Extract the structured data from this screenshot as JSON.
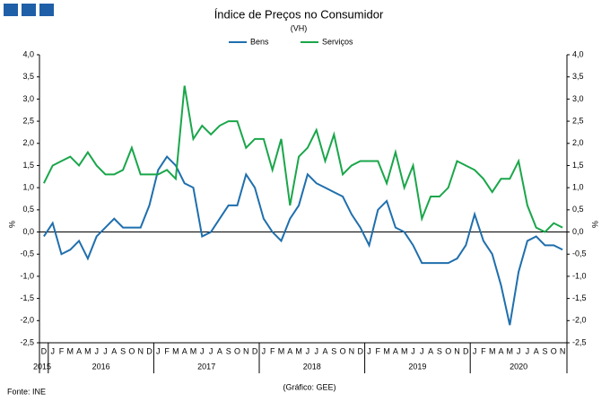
{
  "chart_data": {
    "type": "line",
    "title": "Índice de Preços no Consumidor",
    "subtitle": "(VH)",
    "ylabel": "%",
    "source": "Fonte: INE",
    "credit": "(Gráfico: GEE)",
    "categories": [
      "D",
      "J",
      "F",
      "M",
      "A",
      "M",
      "J",
      "J",
      "A",
      "S",
      "O",
      "N",
      "D",
      "J",
      "F",
      "M",
      "A",
      "M",
      "J",
      "J",
      "A",
      "S",
      "O",
      "N",
      "D",
      "J",
      "F",
      "M",
      "A",
      "M",
      "J",
      "J",
      "A",
      "S",
      "O",
      "N",
      "D",
      "J",
      "F",
      "M",
      "A",
      "M",
      "J",
      "J",
      "A",
      "S",
      "O",
      "N",
      "D",
      "J",
      "F",
      "M",
      "A",
      "M",
      "J",
      "J",
      "A",
      "S",
      "O",
      "N"
    ],
    "years": [
      "2015",
      "2016",
      "2017",
      "2018",
      "2019",
      "2020"
    ],
    "series": [
      {
        "name": "Bens",
        "color": "#1f6fad",
        "values": [
          -0.1,
          0.2,
          -0.5,
          -0.4,
          -0.2,
          -0.6,
          -0.1,
          0.1,
          0.3,
          0.1,
          0.1,
          0.1,
          0.6,
          1.4,
          1.7,
          1.5,
          1.1,
          1.0,
          -0.1,
          0.0,
          0.3,
          0.6,
          0.6,
          1.3,
          1.0,
          0.3,
          0.0,
          -0.2,
          0.3,
          0.6,
          1.3,
          1.1,
          1.0,
          0.9,
          0.8,
          0.4,
          0.1,
          -0.3,
          0.5,
          0.7,
          0.1,
          0.0,
          -0.3,
          -0.7,
          -0.7,
          -0.7,
          -0.7,
          -0.6,
          -0.3,
          0.4,
          -0.2,
          -0.5,
          -1.2,
          -2.1,
          -0.9,
          -0.2,
          -0.1,
          -0.3,
          -0.3,
          -0.4
        ]
      },
      {
        "name": "Serviços",
        "color": "#1aa64a",
        "values": [
          1.1,
          1.5,
          1.6,
          1.7,
          1.5,
          1.8,
          1.5,
          1.3,
          1.3,
          1.4,
          1.9,
          1.3,
          1.3,
          1.3,
          1.4,
          1.2,
          3.3,
          2.1,
          2.4,
          2.2,
          2.4,
          2.5,
          2.5,
          1.9,
          2.1,
          2.1,
          1.4,
          2.1,
          0.6,
          1.7,
          1.9,
          2.3,
          1.6,
          2.2,
          1.3,
          1.5,
          1.6,
          1.6,
          1.6,
          1.1,
          1.8,
          1.0,
          1.5,
          0.3,
          0.8,
          0.8,
          1.0,
          1.6,
          1.5,
          1.4,
          1.2,
          0.9,
          1.2,
          1.2,
          1.6,
          0.6,
          0.1,
          0.0,
          0.2,
          0.1
        ]
      }
    ],
    "ylim": [
      -2.5,
      4.0
    ],
    "yticks": [
      {
        "value": -2.5,
        "label": "-2,5"
      },
      {
        "value": -2.0,
        "label": "-2,0"
      },
      {
        "value": -1.5,
        "label": "-1,5"
      },
      {
        "value": -1.0,
        "label": "-1,0"
      },
      {
        "value": -0.5,
        "label": "-0,5"
      },
      {
        "value": 0,
        "label": "0,0"
      },
      {
        "value": 0.5,
        "label": "0,5"
      },
      {
        "value": 1.0,
        "label": "1,0"
      },
      {
        "value": 1.5,
        "label": "1,5"
      },
      {
        "value": 2.0,
        "label": "2,0"
      },
      {
        "value": 2.5,
        "label": "2,5"
      },
      {
        "value": 3.0,
        "label": "3,0"
      },
      {
        "value": 3.5,
        "label": "3,5"
      },
      {
        "value": 4.0,
        "label": "4,0"
      }
    ]
  }
}
